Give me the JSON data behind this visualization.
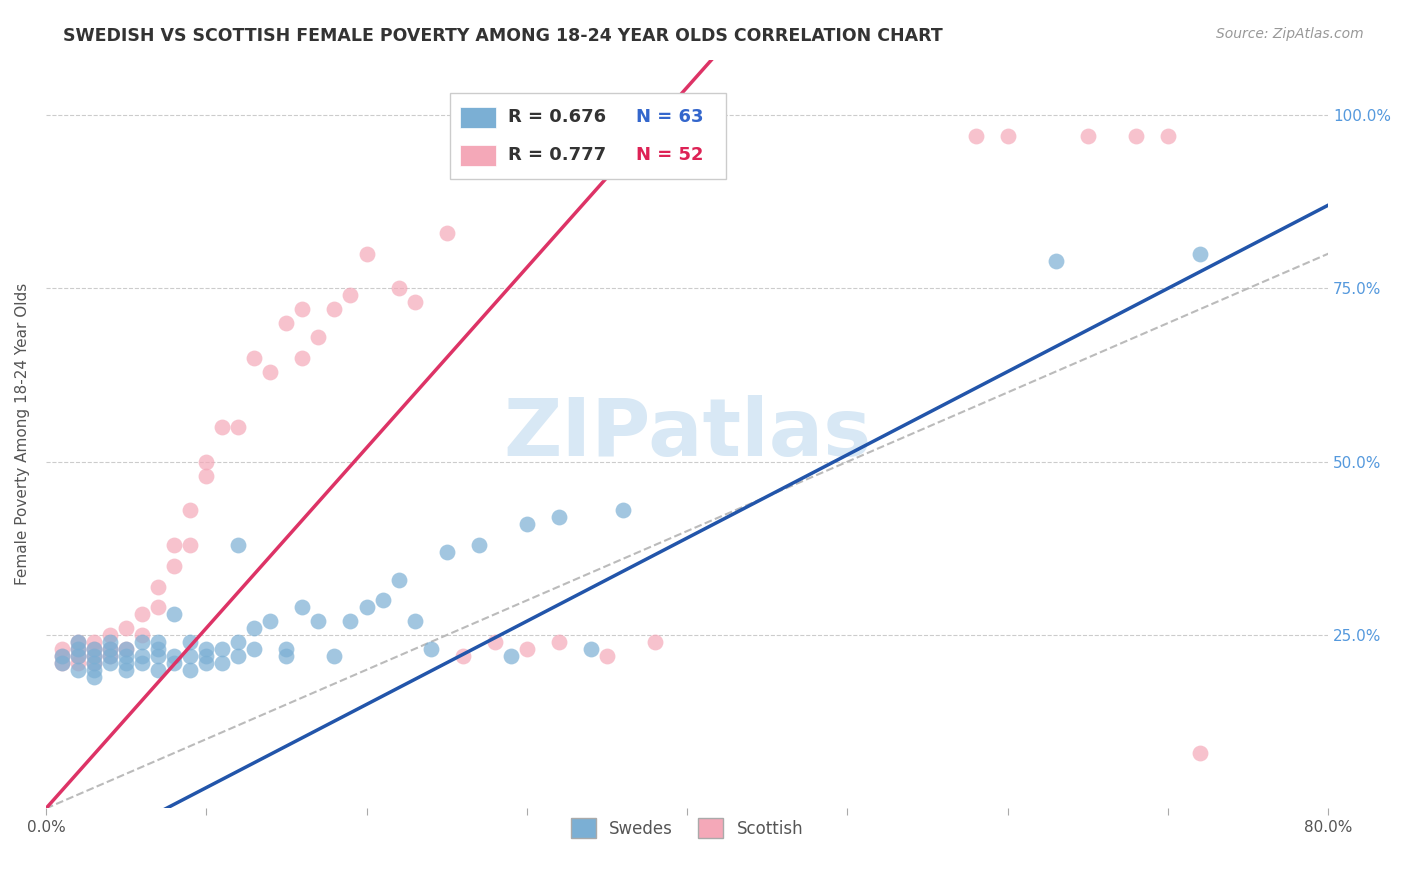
{
  "title": "SWEDISH VS SCOTTISH FEMALE POVERTY AMONG 18-24 YEAR OLDS CORRELATION CHART",
  "source": "Source: ZipAtlas.com",
  "ylabel": "Female Poverty Among 18-24 Year Olds",
  "xlim": [
    0.0,
    0.8
  ],
  "ylim": [
    0.0,
    1.08
  ],
  "xticks": [
    0.0,
    0.1,
    0.2,
    0.3,
    0.4,
    0.5,
    0.6,
    0.7,
    0.8
  ],
  "xticklabels": [
    "0.0%",
    "",
    "",
    "",
    "",
    "",
    "",
    "",
    "80.0%"
  ],
  "yticks": [
    0.0,
    0.25,
    0.5,
    0.75,
    1.0
  ],
  "yticklabels_left": [
    "",
    "",
    "",
    "",
    ""
  ],
  "yticklabels_right": [
    "",
    "25.0%",
    "50.0%",
    "75.0%",
    "100.0%"
  ],
  "blue_color": "#7BAFD4",
  "pink_color": "#F4A8B8",
  "blue_line_color": "#2255AA",
  "pink_line_color": "#DD3366",
  "diag_color": "#BBBBBB",
  "grid_color": "#CCCCCC",
  "R_blue": 0.676,
  "N_blue": 63,
  "R_pink": 0.777,
  "N_pink": 52,
  "blue_slope": 1.2,
  "blue_intercept": -0.09,
  "pink_slope": 2.6,
  "pink_intercept": 0.0,
  "swedes_x": [
    0.01,
    0.01,
    0.02,
    0.02,
    0.02,
    0.02,
    0.03,
    0.03,
    0.03,
    0.03,
    0.03,
    0.04,
    0.04,
    0.04,
    0.04,
    0.05,
    0.05,
    0.05,
    0.05,
    0.06,
    0.06,
    0.06,
    0.07,
    0.07,
    0.07,
    0.07,
    0.08,
    0.08,
    0.08,
    0.09,
    0.09,
    0.09,
    0.1,
    0.1,
    0.1,
    0.11,
    0.11,
    0.12,
    0.12,
    0.12,
    0.13,
    0.13,
    0.14,
    0.15,
    0.15,
    0.16,
    0.17,
    0.18,
    0.19,
    0.2,
    0.21,
    0.22,
    0.23,
    0.24,
    0.25,
    0.27,
    0.29,
    0.3,
    0.32,
    0.34,
    0.36,
    0.63,
    0.72
  ],
  "swedes_y": [
    0.22,
    0.21,
    0.23,
    0.22,
    0.2,
    0.24,
    0.21,
    0.23,
    0.2,
    0.22,
    0.19,
    0.23,
    0.22,
    0.21,
    0.24,
    0.2,
    0.22,
    0.23,
    0.21,
    0.22,
    0.21,
    0.24,
    0.22,
    0.2,
    0.24,
    0.23,
    0.22,
    0.21,
    0.28,
    0.2,
    0.24,
    0.22,
    0.21,
    0.23,
    0.22,
    0.21,
    0.23,
    0.38,
    0.22,
    0.24,
    0.26,
    0.23,
    0.27,
    0.22,
    0.23,
    0.29,
    0.27,
    0.22,
    0.27,
    0.29,
    0.3,
    0.33,
    0.27,
    0.23,
    0.37,
    0.38,
    0.22,
    0.41,
    0.42,
    0.23,
    0.43,
    0.79,
    0.8
  ],
  "scottish_x": [
    0.01,
    0.01,
    0.01,
    0.02,
    0.02,
    0.02,
    0.02,
    0.03,
    0.03,
    0.03,
    0.03,
    0.04,
    0.04,
    0.04,
    0.05,
    0.05,
    0.06,
    0.06,
    0.07,
    0.07,
    0.08,
    0.08,
    0.09,
    0.09,
    0.1,
    0.1,
    0.11,
    0.12,
    0.13,
    0.14,
    0.15,
    0.16,
    0.16,
    0.17,
    0.18,
    0.19,
    0.2,
    0.22,
    0.23,
    0.25,
    0.26,
    0.28,
    0.3,
    0.32,
    0.35,
    0.38,
    0.58,
    0.6,
    0.65,
    0.68,
    0.7,
    0.72
  ],
  "scottish_y": [
    0.21,
    0.22,
    0.23,
    0.22,
    0.24,
    0.21,
    0.23,
    0.22,
    0.24,
    0.21,
    0.23,
    0.23,
    0.25,
    0.22,
    0.23,
    0.26,
    0.25,
    0.28,
    0.29,
    0.32,
    0.35,
    0.38,
    0.38,
    0.43,
    0.48,
    0.5,
    0.55,
    0.55,
    0.65,
    0.63,
    0.7,
    0.65,
    0.72,
    0.68,
    0.72,
    0.74,
    0.8,
    0.75,
    0.73,
    0.83,
    0.22,
    0.24,
    0.23,
    0.24,
    0.22,
    0.24,
    0.97,
    0.97,
    0.97,
    0.97,
    0.97,
    0.08
  ],
  "watermark": "ZIPatlas",
  "watermark_color": "#D8E8F5",
  "background_color": "#FFFFFF"
}
